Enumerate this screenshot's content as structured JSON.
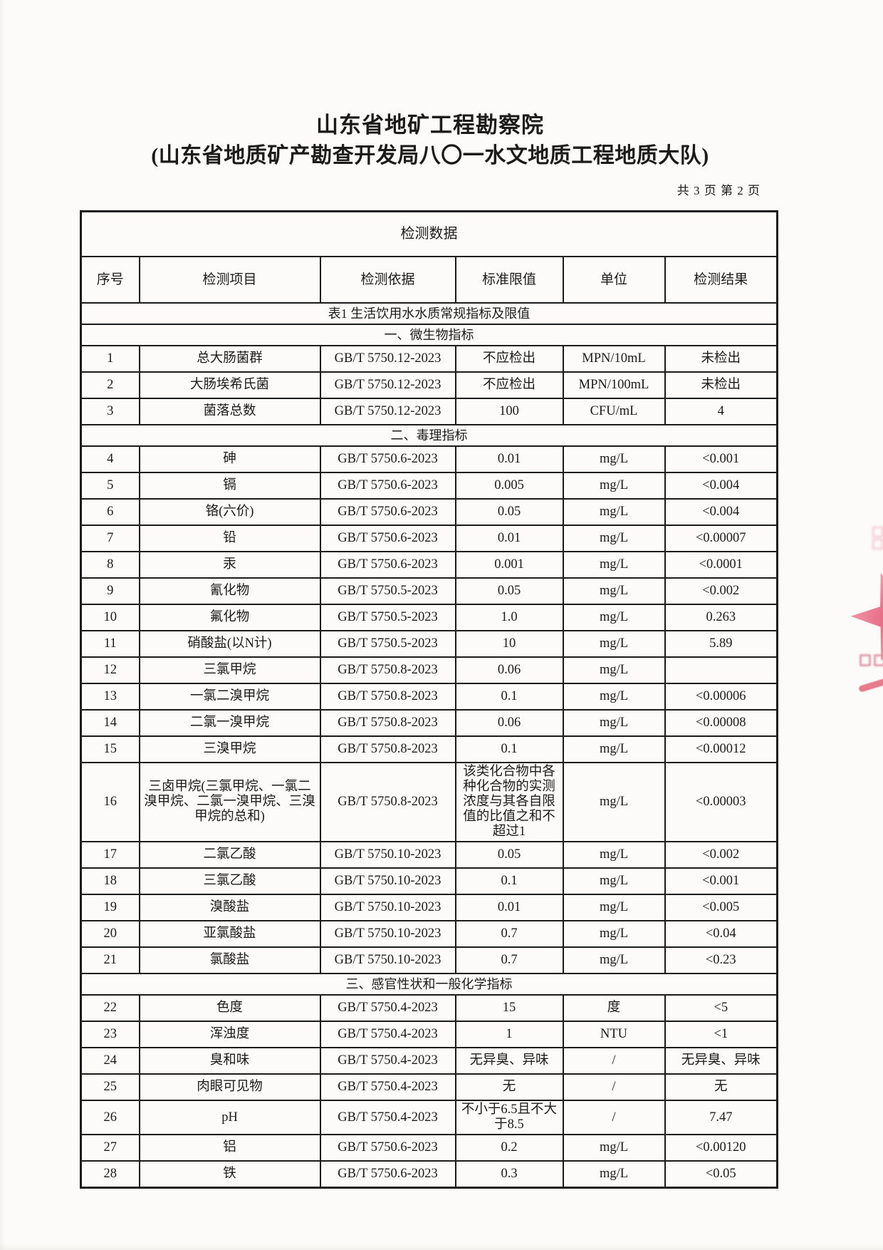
{
  "document": {
    "org_title": "山东省地矿工程勘察院",
    "org_subtitle": "(山东省地质矿产勘查开发局八〇一水文地质工程地质大队)",
    "page_info": "共 3 页 第 2 页"
  },
  "table": {
    "title": "检测数据",
    "columns": [
      "序号",
      "检测项目",
      "检测依据",
      "标准限值",
      "单位",
      "检测结果"
    ],
    "subtitle": "表1 生活饮用水水质常规指标及限值",
    "sections": [
      {
        "name": "一、微生物指标",
        "rows": [
          [
            "1",
            "总大肠菌群",
            "GB/T 5750.12-2023",
            "不应检出",
            "MPN/10mL",
            "未检出"
          ],
          [
            "2",
            "大肠埃希氏菌",
            "GB/T 5750.12-2023",
            "不应检出",
            "MPN/100mL",
            "未检出"
          ],
          [
            "3",
            "菌落总数",
            "GB/T 5750.12-2023",
            "100",
            "CFU/mL",
            "4"
          ]
        ]
      },
      {
        "name": "二、毒理指标",
        "rows": [
          [
            "4",
            "砷",
            "GB/T 5750.6-2023",
            "0.01",
            "mg/L",
            "<0.001"
          ],
          [
            "5",
            "镉",
            "GB/T 5750.6-2023",
            "0.005",
            "mg/L",
            "<0.004"
          ],
          [
            "6",
            "铬(六价)",
            "GB/T 5750.6-2023",
            "0.05",
            "mg/L",
            "<0.004"
          ],
          [
            "7",
            "铅",
            "GB/T 5750.6-2023",
            "0.01",
            "mg/L",
            "<0.00007"
          ],
          [
            "8",
            "汞",
            "GB/T 5750.6-2023",
            "0.001",
            "mg/L",
            "<0.0001"
          ],
          [
            "9",
            "氰化物",
            "GB/T 5750.5-2023",
            "0.05",
            "mg/L",
            "<0.002"
          ],
          [
            "10",
            "氟化物",
            "GB/T 5750.5-2023",
            "1.0",
            "mg/L",
            "0.263"
          ],
          [
            "11",
            "硝酸盐(以N计)",
            "GB/T 5750.5-2023",
            "10",
            "mg/L",
            "5.89"
          ],
          [
            "12",
            "三氯甲烷",
            "GB/T 5750.8-2023",
            "0.06",
            "mg/L",
            ""
          ],
          [
            "13",
            "一氯二溴甲烷",
            "GB/T 5750.8-2023",
            "0.1",
            "mg/L",
            "<0.00006"
          ],
          [
            "14",
            "二氯一溴甲烷",
            "GB/T 5750.8-2023",
            "0.06",
            "mg/L",
            "<0.00008"
          ],
          [
            "15",
            "三溴甲烷",
            "GB/T 5750.8-2023",
            "0.1",
            "mg/L",
            "<0.00012"
          ],
          [
            "16",
            "三卤甲烷(三氯甲烷、一氯二溴甲烷、二氯一溴甲烷、三溴甲烷的总和)",
            "GB/T 5750.8-2023",
            "该类化合物中各种化合物的实测浓度与其各自限值的比值之和不超过1",
            "mg/L",
            "<0.00003"
          ],
          [
            "17",
            "二氯乙酸",
            "GB/T 5750.10-2023",
            "0.05",
            "mg/L",
            "<0.002"
          ],
          [
            "18",
            "三氯乙酸",
            "GB/T 5750.10-2023",
            "0.1",
            "mg/L",
            "<0.001"
          ],
          [
            "19",
            "溴酸盐",
            "GB/T 5750.10-2023",
            "0.01",
            "mg/L",
            "<0.005"
          ],
          [
            "20",
            "亚氯酸盐",
            "GB/T 5750.10-2023",
            "0.7",
            "mg/L",
            "<0.04"
          ],
          [
            "21",
            "氯酸盐",
            "GB/T 5750.10-2023",
            "0.7",
            "mg/L",
            "<0.23"
          ]
        ]
      },
      {
        "name": "三、感官性状和一般化学指标",
        "rows": [
          [
            "22",
            "色度",
            "GB/T 5750.4-2023",
            "15",
            "度",
            "<5"
          ],
          [
            "23",
            "浑浊度",
            "GB/T 5750.4-2023",
            "1",
            "NTU",
            "<1"
          ],
          [
            "24",
            "臭和味",
            "GB/T 5750.4-2023",
            "无异臭、异味",
            "/",
            "无异臭、异味"
          ],
          [
            "25",
            "肉眼可见物",
            "GB/T 5750.4-2023",
            "无",
            "/",
            "无"
          ],
          [
            "26",
            "pH",
            "GB/T 5750.4-2023",
            "不小于6.5且不大于8.5",
            "/",
            "7.47"
          ],
          [
            "27",
            "铝",
            "GB/T 5750.6-2023",
            "0.2",
            "mg/L",
            "<0.00120"
          ],
          [
            "28",
            "铁",
            "GB/T 5750.6-2023",
            "0.3",
            "mg/L",
            "<0.05"
          ]
        ]
      }
    ]
  },
  "stamp": {
    "color": "#ee8095",
    "color_light": "#efa9ba",
    "color_mid": "#dd8599",
    "color_dark": "#e25a70"
  }
}
